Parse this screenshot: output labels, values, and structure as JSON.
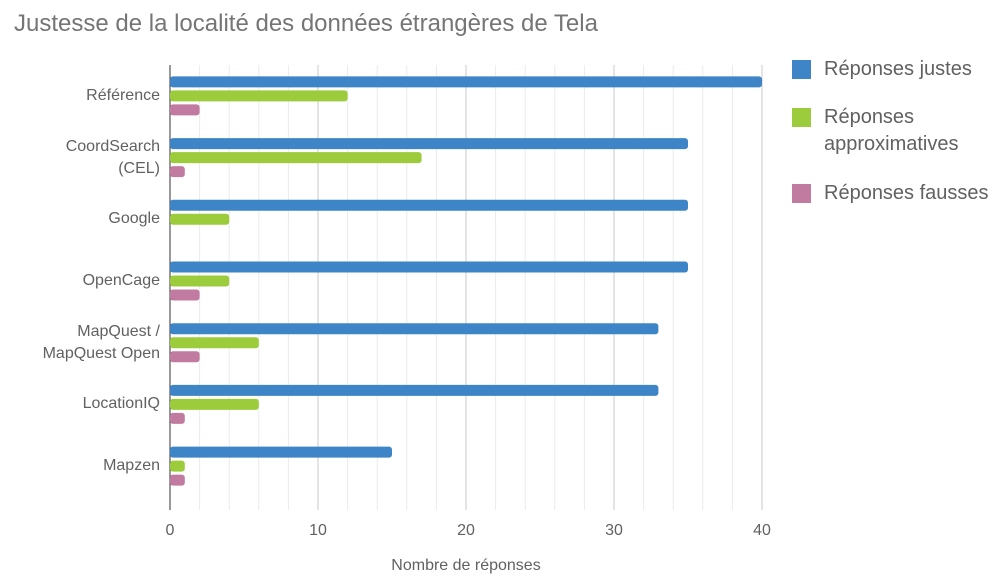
{
  "chart_data": {
    "type": "hbar",
    "title": "Justesse de la localité des données étrangères de Tela",
    "categories": [
      "Référence",
      "CoordSearch (CEL)",
      "Google",
      "OpenCage",
      "MapQuest / MapQuest Open",
      "LocationIQ",
      "Mapzen"
    ],
    "series": [
      {
        "name": "Réponses justes",
        "color": "#3d85c6",
        "values": [
          40,
          35,
          35,
          35,
          33,
          33,
          15
        ]
      },
      {
        "name": "Réponses approximatives",
        "color": "#9ccc3c",
        "values": [
          12,
          17,
          4,
          4,
          6,
          6,
          1
        ]
      },
      {
        "name": "Réponses fausses",
        "color": "#c27ba0",
        "values": [
          2,
          1,
          0,
          2,
          2,
          1,
          1
        ]
      }
    ],
    "x_label": "Nombre de réponses",
    "xlim": [
      0,
      40
    ],
    "xticks": [
      0,
      10,
      20,
      30,
      40
    ],
    "xminorticks": [
      2,
      4,
      6,
      8,
      12,
      14,
      16,
      18,
      22,
      24,
      26,
      28,
      32,
      34,
      36,
      38
    ],
    "grid": true,
    "legend": "right"
  }
}
